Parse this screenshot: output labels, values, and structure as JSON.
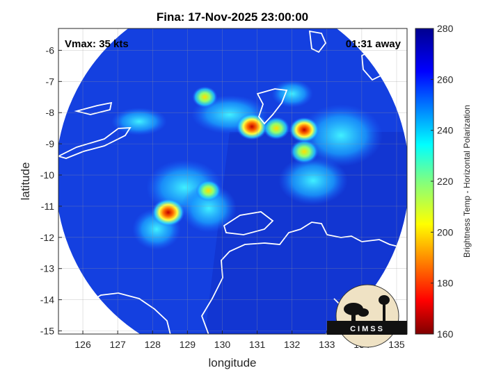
{
  "title": "Fina: 17-Nov-2025 23:00:00",
  "annotations": {
    "vmax": "Vmax: 35 kts",
    "time_away": "01:31 away"
  },
  "axes": {
    "xlabel": "longitude",
    "ylabel": "latitude",
    "xlim": [
      125.3,
      135.3
    ],
    "ylim": [
      -15.1,
      -5.3
    ],
    "xticks": [
      "126",
      "127",
      "128",
      "129",
      "130",
      "131",
      "132",
      "133",
      "134",
      "135"
    ],
    "yticks": [
      "-6",
      "-7",
      "-8",
      "-9",
      "-10",
      "-11",
      "-12",
      "-13",
      "-14",
      "-15"
    ],
    "grid": true
  },
  "colorbar": {
    "label": "Brightness Temp - Horizontal Polarization",
    "min": 160,
    "max": 280,
    "ticks": [
      "280",
      "260",
      "240",
      "220",
      "200",
      "180",
      "160"
    ],
    "colormap": "jet",
    "colors": [
      "#7f0000",
      "#ff0000",
      "#ff8000",
      "#ffff00",
      "#80ff80",
      "#00ffff",
      "#0080ff",
      "#0000ff",
      "#00008f"
    ]
  },
  "logo": {
    "text": "CIMSS"
  },
  "map_features": {
    "swath_background": "#1440e0",
    "coastline_color": "#ffffff",
    "land_outside_swath": "#ffffff",
    "warm_features": [
      {
        "lon": 128.45,
        "lat": -11.2,
        "tb": 180
      },
      {
        "lon": 129.6,
        "lat": -10.5,
        "tb": 205
      },
      {
        "lon": 130.85,
        "lat": -8.45,
        "tb": 185
      },
      {
        "lon": 132.35,
        "lat": -8.55,
        "tb": 190
      },
      {
        "lon": 132.35,
        "lat": -9.25,
        "tb": 195
      },
      {
        "lon": 129.5,
        "lat": -7.5,
        "tb": 205
      },
      {
        "lon": 131.55,
        "lat": -8.5,
        "tb": 200
      }
    ]
  }
}
